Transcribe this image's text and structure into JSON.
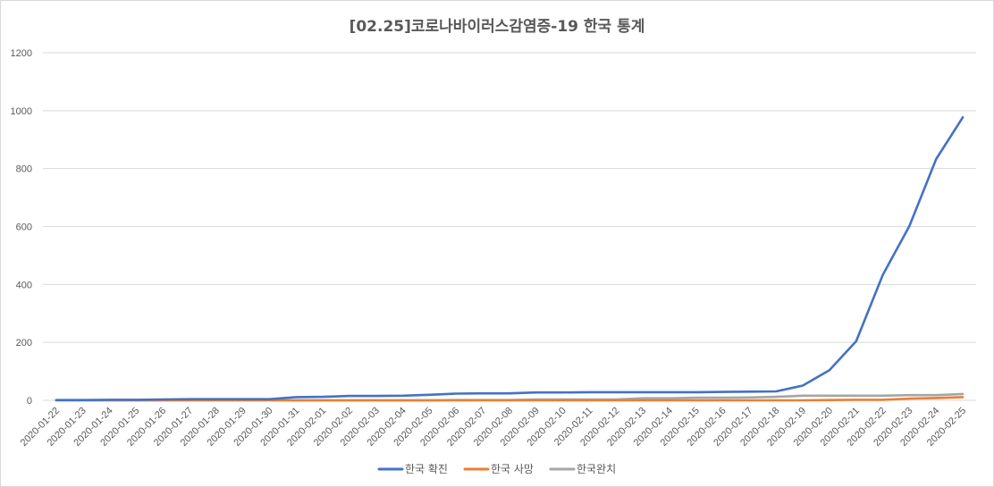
{
  "chart_data": {
    "type": "line",
    "title": "[02.25]코로나바이러스감염증-19 한국 통계",
    "xlabel": "",
    "ylabel": "",
    "ylim": [
      0,
      1200
    ],
    "yticks": [
      0,
      200,
      400,
      600,
      800,
      1000,
      1200
    ],
    "grid": true,
    "legend_position": "bottom",
    "categories": [
      "2020-01-22",
      "2020-01-23",
      "2020-01-24",
      "2020-01-25",
      "2020-01-26",
      "2020-01-27",
      "2020-01-28",
      "2020-01-29",
      "2020-01-30",
      "2020-01-31",
      "2020-02-01",
      "2020-02-02",
      "2020-02-03",
      "2020-02-04",
      "2020-02-05",
      "2020-02-06",
      "2020-02-07",
      "2020-02-08",
      "2020-02-09",
      "2020-02-10",
      "2020-02-11",
      "2020-02-12",
      "2020-02-13",
      "2020-02-14",
      "2020-02-15",
      "2020-02-16",
      "2020-02-17",
      "2020-02-18",
      "2020-02-19",
      "2020-02-20",
      "2020-02-21",
      "2020-02-22",
      "2020-02-23",
      "2020-02-24",
      "2020-02-25"
    ],
    "series": [
      {
        "name": "한국 확진",
        "color": "#4472c4",
        "values": [
          1,
          1,
          2,
          2,
          3,
          4,
          4,
          4,
          4,
          11,
          12,
          15,
          15,
          16,
          19,
          23,
          24,
          24,
          27,
          27,
          28,
          28,
          28,
          28,
          28,
          29,
          30,
          31,
          51,
          104,
          204,
          433,
          602,
          833,
          977
        ]
      },
      {
        "name": "한국 사망",
        "color": "#ed7d31",
        "values": [
          0,
          0,
          0,
          0,
          0,
          0,
          0,
          0,
          0,
          0,
          0,
          0,
          0,
          0,
          0,
          0,
          0,
          0,
          0,
          0,
          0,
          0,
          0,
          0,
          0,
          0,
          0,
          0,
          0,
          1,
          2,
          2,
          6,
          8,
          11
        ]
      },
      {
        "name": "한국완치",
        "color": "#a5a5a5",
        "values": [
          0,
          0,
          0,
          0,
          0,
          0,
          0,
          0,
          0,
          0,
          0,
          0,
          0,
          0,
          0,
          1,
          1,
          1,
          3,
          3,
          3,
          3,
          7,
          7,
          9,
          9,
          10,
          12,
          16,
          16,
          16,
          16,
          18,
          18,
          22
        ]
      }
    ]
  }
}
